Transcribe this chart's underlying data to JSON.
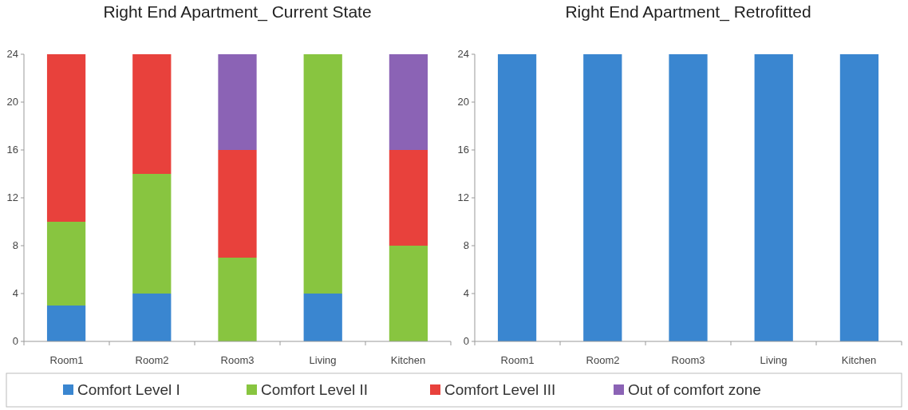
{
  "chart_data": [
    {
      "type": "bar",
      "title": "Right End Apartment_ Current State",
      "categories": [
        "Room1",
        "Room2",
        "Room3",
        "Living",
        "Kitchen"
      ],
      "stacked": true,
      "ylim": [
        0,
        24
      ],
      "yticks": [
        0,
        4,
        8,
        12,
        16,
        20,
        24
      ],
      "legend": "bottom",
      "series": [
        {
          "name": "Comfort Level I",
          "color": "#3a86d0",
          "values": [
            3,
            4,
            0,
            4,
            0
          ]
        },
        {
          "name": "Comfort Level II",
          "color": "#88c540",
          "values": [
            7,
            10,
            7,
            20,
            8
          ]
        },
        {
          "name": "Comfort Level III",
          "color": "#e8413c",
          "values": [
            14,
            10,
            9,
            0,
            8
          ]
        },
        {
          "name": "Out of comfort zone",
          "color": "#8b63b5",
          "values": [
            0,
            0,
            8,
            0,
            8
          ]
        }
      ]
    },
    {
      "type": "bar",
      "title": "Right End Apartment_ Retrofitted",
      "categories": [
        "Room1",
        "Room2",
        "Room3",
        "Living",
        "Kitchen"
      ],
      "stacked": true,
      "ylim": [
        0,
        24
      ],
      "yticks": [
        0,
        4,
        8,
        12,
        16,
        20,
        24
      ],
      "series": [
        {
          "color": "#3a86d0",
          "values": [
            24,
            24,
            24,
            24,
            24
          ]
        }
      ]
    }
  ]
}
